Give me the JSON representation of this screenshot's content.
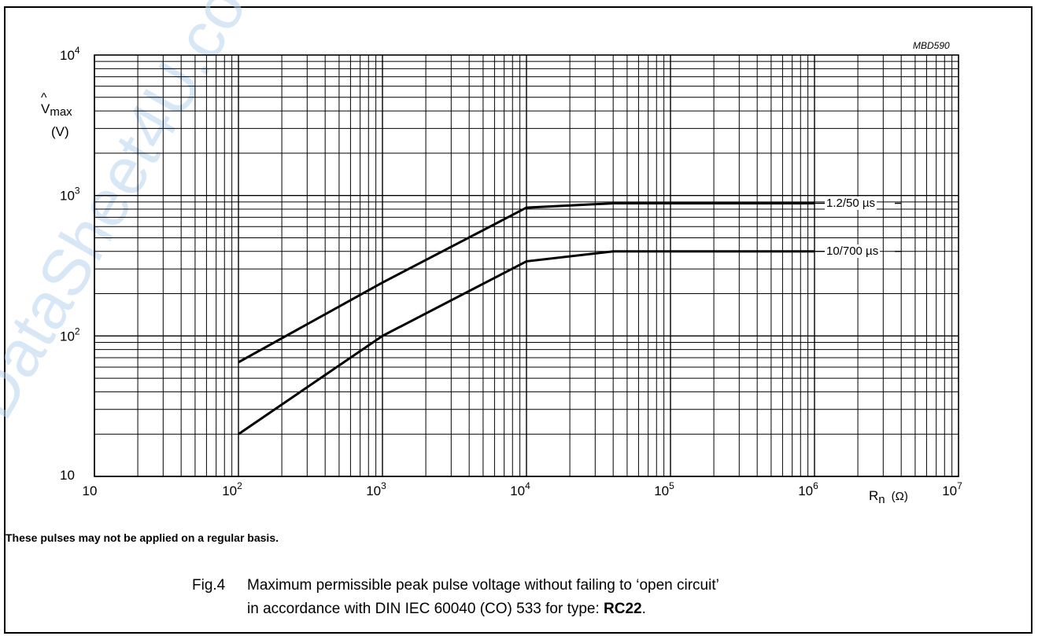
{
  "figure_code": "MBD590",
  "note": "These pulses may not be applied on a regular basis.",
  "caption": {
    "fig_number": "Fig.4",
    "line1": "Maximum permissible peak pulse voltage without failing to ‘open circuit’",
    "line2_prefix": "in accordance with DIN IEC 60040 (CO) 533 for type: ",
    "line2_bold": "RC22",
    "line2_suffix": "."
  },
  "chart_data": {
    "type": "line",
    "title": "",
    "x_scale": "log",
    "y_scale": "log",
    "xlim": [
      10,
      10000000
    ],
    "ylim": [
      10,
      10000
    ],
    "grid": true,
    "xlabel": {
      "symbol": "R",
      "subscript": "n",
      "unit": "(Ω)"
    },
    "ylabel": {
      "symbol": "V",
      "accent": "^",
      "subscript": "max",
      "unit": "(V)"
    },
    "x_ticks": [
      {
        "base": "10",
        "exp": ""
      },
      {
        "base": "10",
        "exp": "2"
      },
      {
        "base": "10",
        "exp": "3"
      },
      {
        "base": "10",
        "exp": "4"
      },
      {
        "base": "10",
        "exp": "5"
      },
      {
        "base": "10",
        "exp": "6"
      },
      {
        "base": "10",
        "exp": "7"
      }
    ],
    "y_ticks": [
      {
        "base": "10",
        "exp": ""
      },
      {
        "base": "10",
        "exp": "2"
      },
      {
        "base": "10",
        "exp": "3"
      },
      {
        "base": "10",
        "exp": "4"
      }
    ],
    "series": [
      {
        "name": "1.2/50 µs",
        "points": [
          [
            100,
            65
          ],
          [
            1000,
            240
          ],
          [
            10000,
            820
          ],
          [
            40000,
            880
          ],
          [
            1000000,
            880
          ]
        ]
      },
      {
        "name": "10/700 µs",
        "points": [
          [
            100,
            20
          ],
          [
            1000,
            100
          ],
          [
            10000,
            340
          ],
          [
            40000,
            400
          ],
          [
            1000000,
            400
          ]
        ]
      }
    ]
  }
}
